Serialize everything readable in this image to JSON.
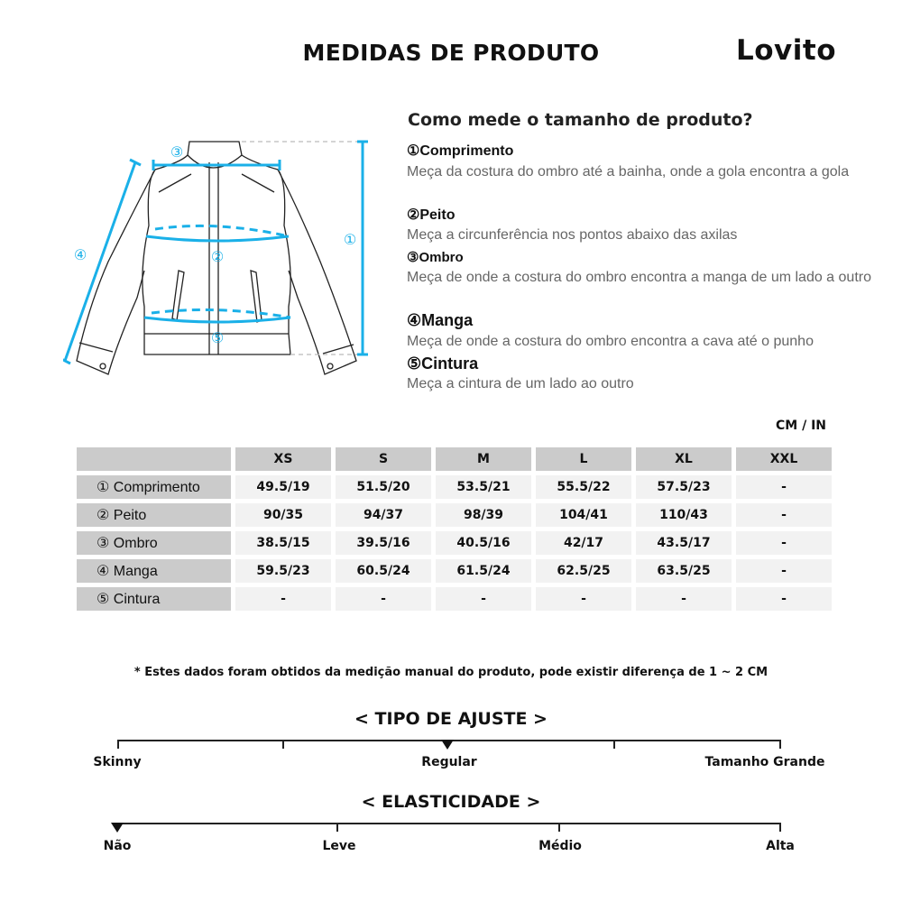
{
  "header": {
    "title": "MEDIDAS DE PRODUTO",
    "logo": "Lovito"
  },
  "guide": {
    "heading": "Como mede o tamanho de produto?",
    "items": [
      {
        "label": "①Comprimento",
        "desc": "Meça da costura do ombro até a bainha, onde a gola encontra a gola"
      },
      {
        "label": "②Peito",
        "desc": "Meça a circunferência nos pontos abaixo das axilas"
      },
      {
        "label": "③Ombro",
        "desc": "Meça de onde a costura do ombro encontra a manga de um lado a outro"
      },
      {
        "label": "④Manga",
        "desc": "Meça de onde a costura do ombro encontra a cava até o punho"
      },
      {
        "label": "⑤Cintura",
        "desc": "Meça a cintura de um lado ao outro"
      }
    ]
  },
  "diagram": {
    "markers": [
      "①",
      "②",
      "③",
      "④",
      "⑤"
    ],
    "accent": "#1ab0e8"
  },
  "table": {
    "unit": "CM / IN",
    "sizes": [
      "XS",
      "S",
      "M",
      "L",
      "XL",
      "XXL"
    ],
    "rows": [
      {
        "label": "① Comprimento",
        "values": [
          "49.5/19",
          "51.5/20",
          "53.5/21",
          "55.5/22",
          "57.5/23",
          "-"
        ]
      },
      {
        "label": "② Peito",
        "values": [
          "90/35",
          "94/37",
          "98/39",
          "104/41",
          "110/43",
          "-"
        ]
      },
      {
        "label": "③ Ombro",
        "values": [
          "38.5/15",
          "39.5/16",
          "40.5/16",
          "42/17",
          "43.5/17",
          "-"
        ]
      },
      {
        "label": "④ Manga",
        "values": [
          "59.5/23",
          "60.5/24",
          "61.5/24",
          "62.5/25",
          "63.5/25",
          "-"
        ]
      },
      {
        "label": "⑤ Cintura",
        "values": [
          "-",
          "-",
          "-",
          "-",
          "-",
          "-"
        ]
      }
    ]
  },
  "note": "* Estes dados foram obtidos da medição manual do produto, pode existir diferença de 1 ~ 2 CM",
  "fit": {
    "title": "< TIPO DE AJUSTE >",
    "labels": [
      "Skinny",
      "Regular",
      "Tamanho Grande"
    ],
    "selected": "Regular"
  },
  "elasticity": {
    "title": "< ELASTICIDADE >",
    "labels": [
      "Não",
      "Leve",
      "Médio",
      "Alta"
    ],
    "selected": "Não"
  }
}
